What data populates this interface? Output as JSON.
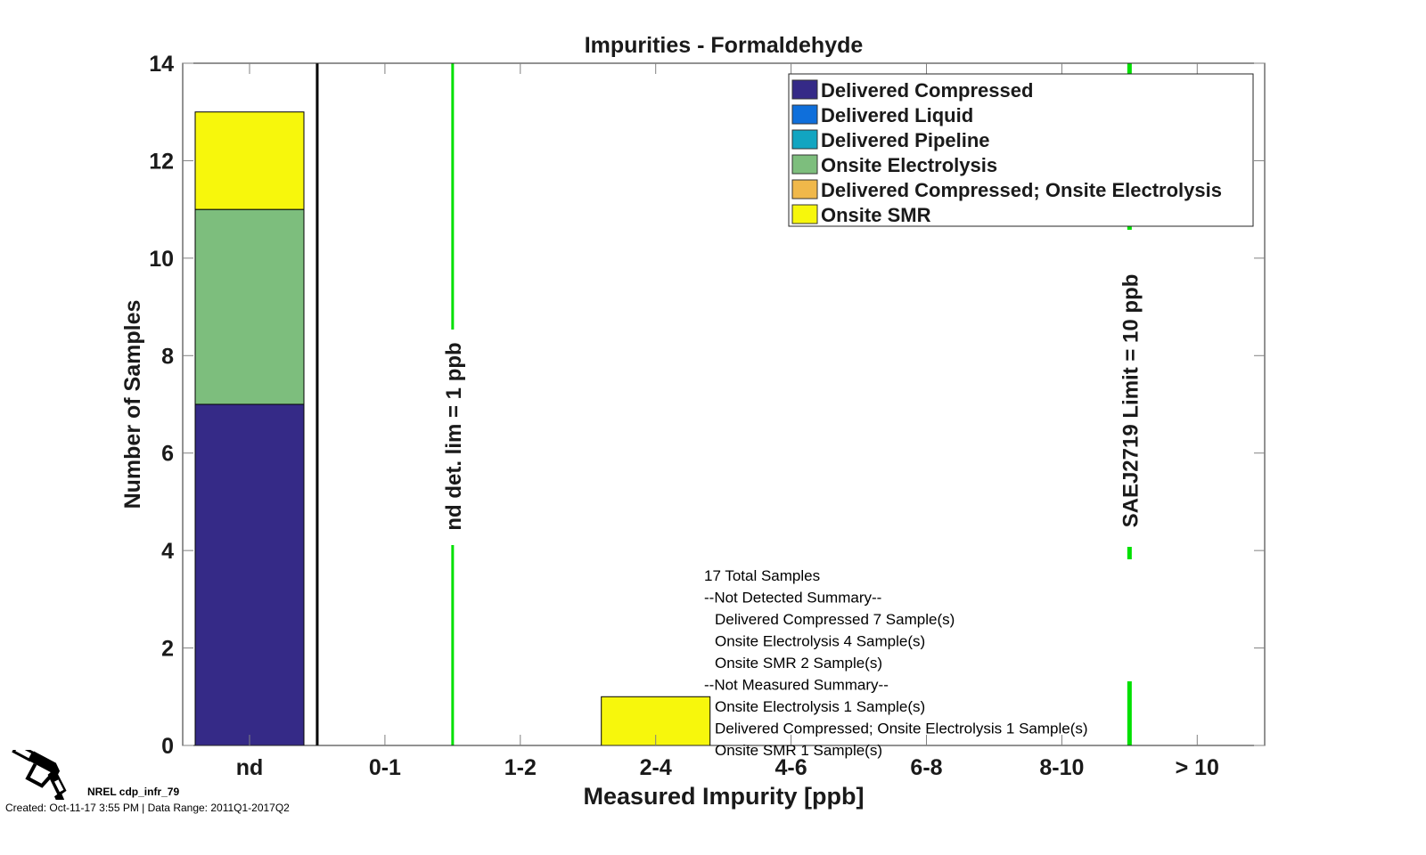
{
  "chart_data": {
    "type": "bar",
    "stacked": true,
    "title": "Impurities - Formaldehyde",
    "xlabel": "Measured Impurity [ppb]",
    "ylabel": "Number of Samples",
    "ylim": [
      0,
      14
    ],
    "yticks": [
      0,
      2,
      4,
      6,
      8,
      10,
      12,
      14
    ],
    "grid": false,
    "categories": [
      "nd",
      "0-1",
      "1-2",
      "2-4",
      "4-6",
      "6-8",
      "8-10",
      "> 10"
    ],
    "series": [
      {
        "name": "Delivered Compressed",
        "color": "#352a87",
        "values": [
          7,
          0,
          0,
          0,
          0,
          0,
          0,
          0
        ]
      },
      {
        "name": "Delivered Liquid",
        "color": "#0f6fdb",
        "values": [
          0,
          0,
          0,
          0,
          0,
          0,
          0,
          0
        ]
      },
      {
        "name": "Delivered Pipeline",
        "color": "#12a5c1",
        "values": [
          0,
          0,
          0,
          0,
          0,
          0,
          0,
          0
        ]
      },
      {
        "name": "Onsite Electrolysis",
        "color": "#7dbe7d",
        "values": [
          4,
          0,
          0,
          0,
          0,
          0,
          0,
          0
        ]
      },
      {
        "name": "Delivered Compressed; Onsite Electrolysis",
        "color": "#f0b84a",
        "values": [
          0,
          0,
          0,
          0,
          0,
          0,
          0,
          0
        ]
      },
      {
        "name": "Onsite SMR",
        "color": "#f7f70c",
        "values": [
          2,
          0,
          0,
          1,
          0,
          0,
          0,
          0
        ]
      }
    ],
    "legend_position": "top-right",
    "reference_lines": [
      {
        "label": "nd det. lim = 1 ppb",
        "color": "#00e000",
        "position_between": [
          "0-1",
          "1-2"
        ]
      },
      {
        "label": "SAEJ2719 Limit = 10 ppb",
        "color": "#00e000",
        "position_between": [
          "8-10",
          "> 10"
        ]
      }
    ],
    "separator_line": {
      "color": "#000000",
      "position_between": [
        "nd",
        "0-1"
      ]
    },
    "annotation_lines": [
      "17 Total Samples",
      "--Not Detected Summary--",
      "  Delivered Compressed 7 Sample(s)",
      "  Onsite Electrolysis 4 Sample(s)",
      "  Onsite SMR 2 Sample(s)",
      "--Not Measured Summary--",
      "  Onsite Electrolysis 1 Sample(s)",
      "  Delivered Compressed; Onsite Electrolysis 1 Sample(s)",
      "  Onsite SMR 1 Sample(s)"
    ]
  },
  "footer": {
    "id_label": "NREL cdp_infr_79",
    "created_label": "Created: Oct-11-17  3:55 PM | Data Range: 2011Q1-2017Q2",
    "logo_icon": "fuel-nozzle-icon"
  }
}
